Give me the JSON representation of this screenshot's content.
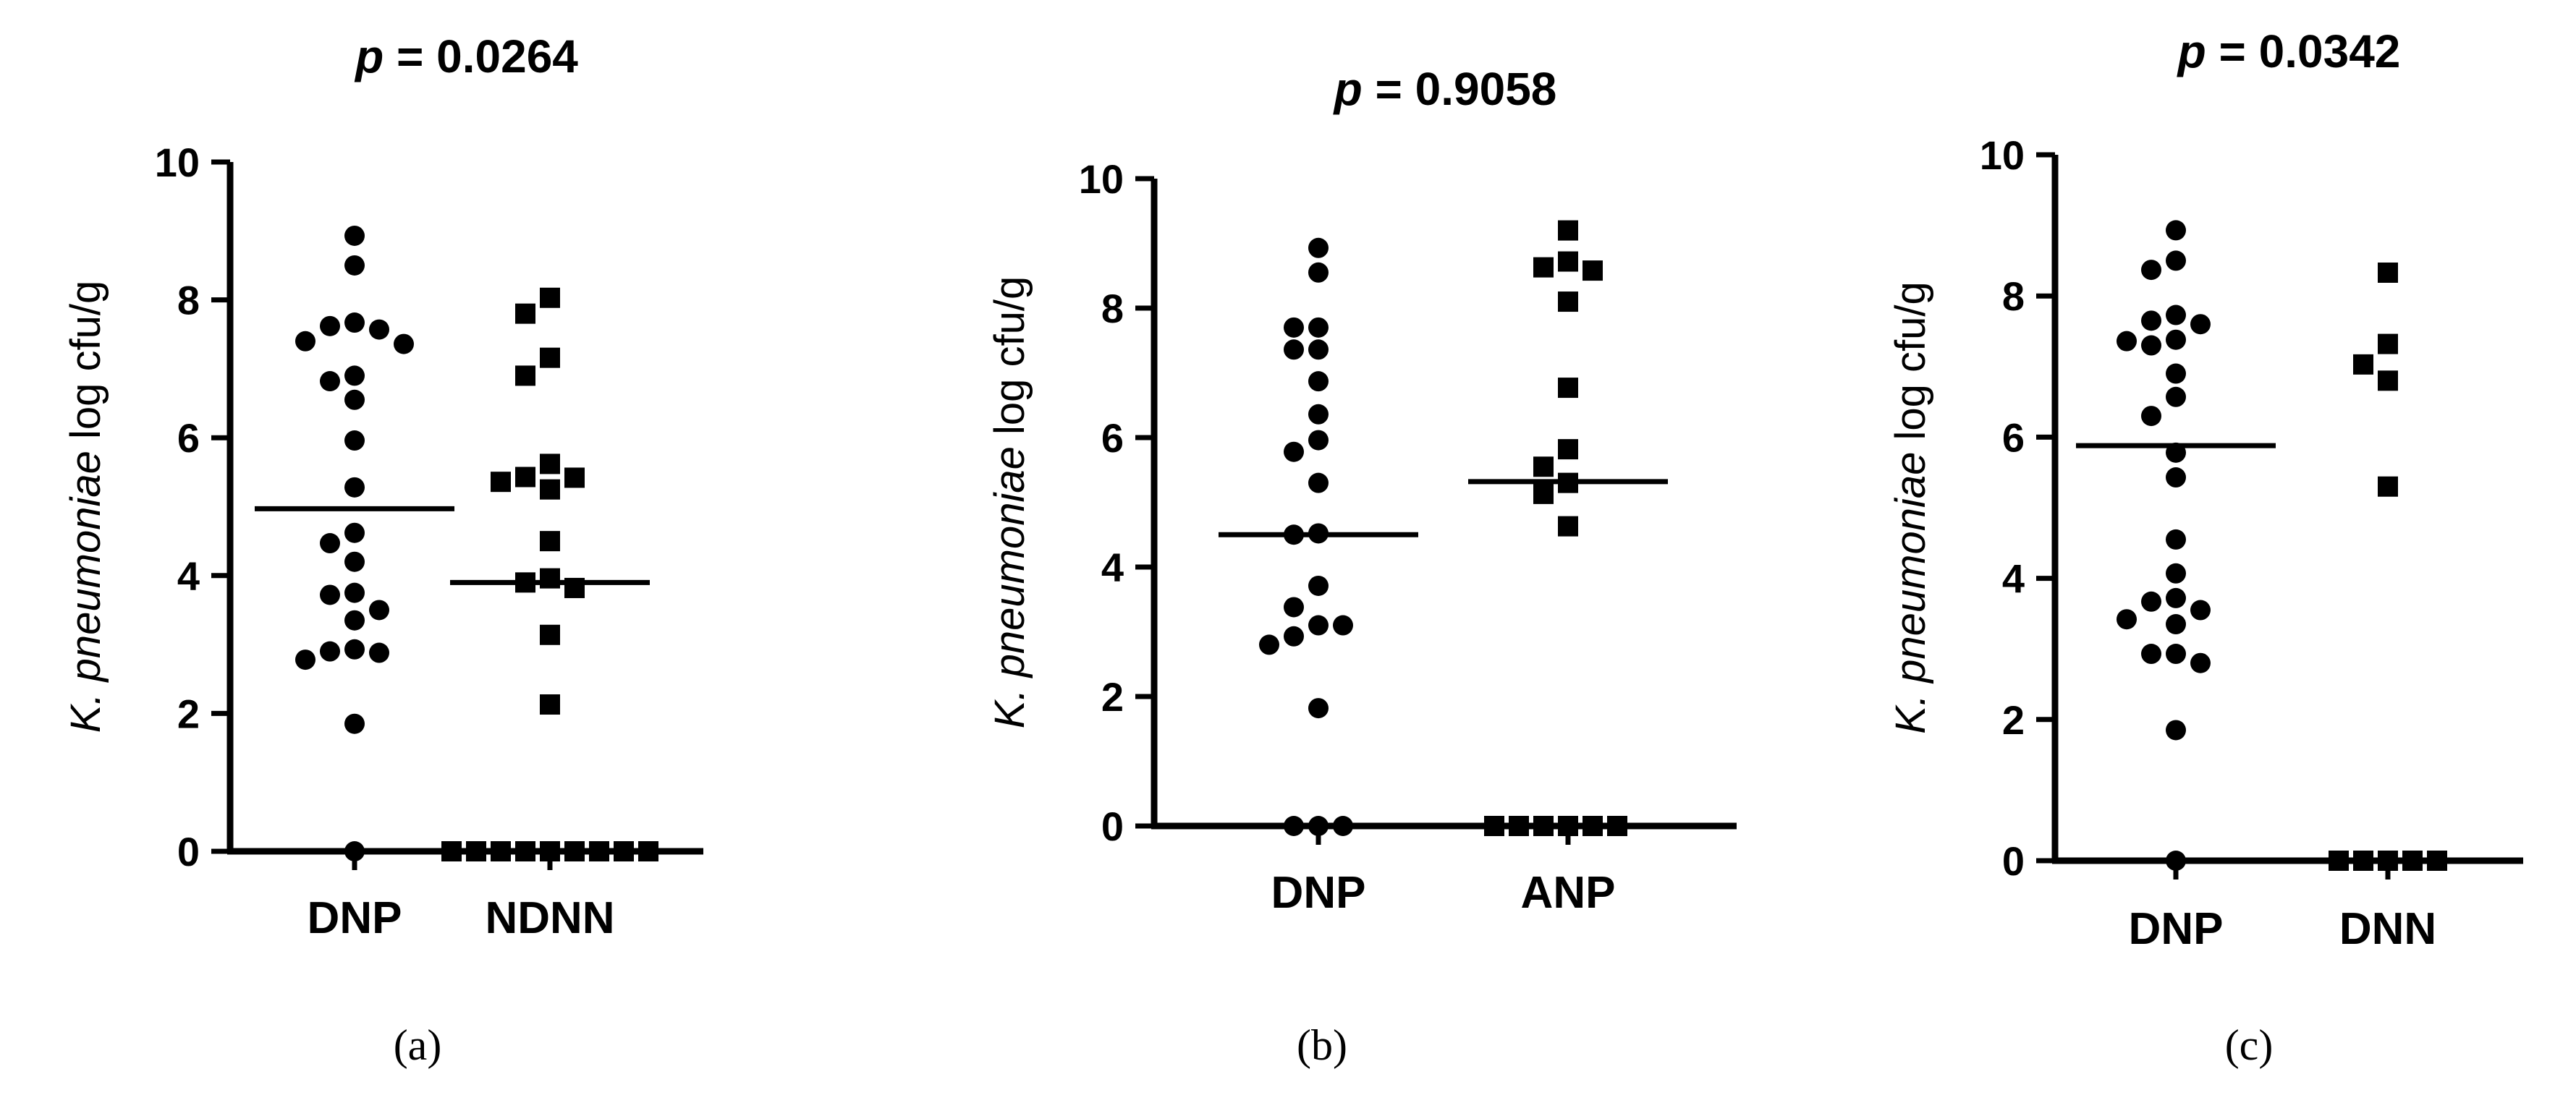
{
  "chart_data": [
    {
      "type": "scatter",
      "panel_label": "(a)",
      "title_var": "p",
      "title_rest": " = 0.0264",
      "ylabel_italic": "K. pneumoniae",
      "ylabel_rest": " log cfu/g",
      "ylim": [
        0,
        10
      ],
      "yticks": [
        "0",
        "2",
        "4",
        "6",
        "8",
        "10"
      ],
      "categories": [
        "DNP",
        "NDNN"
      ],
      "series": [
        {
          "category": "DNP",
          "marker": "circle",
          "median": 4.97,
          "values": [
            8.93,
            8.5,
            7.67,
            7.62,
            7.4,
            7.36,
            7.57,
            6.9,
            6.82,
            6.55,
            5.96,
            5.28,
            4.62,
            4.47,
            4.2,
            3.75,
            3.72,
            3.35,
            3.5,
            2.9,
            2.88,
            2.93,
            2.78,
            1.85,
            0.0
          ]
        },
        {
          "category": "NDNN",
          "marker": "square",
          "median": 3.9,
          "values": [
            8.03,
            7.8,
            7.16,
            6.9,
            5.62,
            5.36,
            5.25,
            5.43,
            5.42,
            4.5,
            3.96,
            3.82,
            3.9,
            3.14,
            2.13,
            0.0,
            0.0,
            0.0,
            0.0,
            0.0,
            0.0,
            0.0,
            0.0,
            0.0
          ]
        }
      ]
    },
    {
      "type": "scatter",
      "panel_label": "(b)",
      "title_var": "p",
      "title_rest": " = 0.9058",
      "ylabel_italic": "K. pneumoniae",
      "ylabel_rest": " log cfu/g",
      "ylim": [
        0,
        10
      ],
      "yticks": [
        "0",
        "2",
        "4",
        "6",
        "8",
        "10"
      ],
      "categories": [
        "DNP",
        "ANP"
      ],
      "series": [
        {
          "category": "DNP",
          "marker": "circle",
          "median": 4.5,
          "values": [
            8.93,
            8.55,
            7.7,
            7.7,
            7.36,
            7.36,
            6.87,
            6.36,
            5.96,
            5.78,
            5.3,
            4.5,
            4.52,
            3.71,
            3.38,
            3.1,
            3.1,
            2.93,
            2.8,
            1.82,
            0.0,
            0.0,
            0.0
          ]
        },
        {
          "category": "ANP",
          "marker": "square",
          "median": 5.32,
          "values": [
            9.2,
            8.72,
            8.58,
            8.63,
            8.1,
            6.77,
            5.82,
            5.55,
            5.3,
            5.13,
            4.63,
            0.0,
            0.0,
            0.0,
            0.0,
            0.0,
            0.0
          ]
        }
      ]
    },
    {
      "type": "scatter",
      "panel_label": "(c)",
      "title_var": "p",
      "title_rest": " = 0.0342",
      "ylabel_italic": "K. pneumoniae",
      "ylabel_rest": " log cfu/g",
      "ylim": [
        0,
        10
      ],
      "yticks": [
        "0",
        "2",
        "4",
        "6",
        "8",
        "10"
      ],
      "categories": [
        "DNP",
        "DNN"
      ],
      "series": [
        {
          "category": "DNP",
          "marker": "circle",
          "median": 5.88,
          "values": [
            8.93,
            8.5,
            8.37,
            7.73,
            7.6,
            7.65,
            7.38,
            7.36,
            7.3,
            6.9,
            6.57,
            6.3,
            5.78,
            5.43,
            4.55,
            4.07,
            3.72,
            3.67,
            3.55,
            3.42,
            3.35,
            2.93,
            2.8,
            2.93,
            1.85,
            0.0
          ]
        },
        {
          "category": "DNN",
          "marker": "square",
          "median": null,
          "values": [
            8.33,
            7.32,
            7.03,
            6.8,
            5.3,
            0.0,
            0.0,
            0.0,
            0.0,
            0.0
          ]
        }
      ]
    }
  ]
}
